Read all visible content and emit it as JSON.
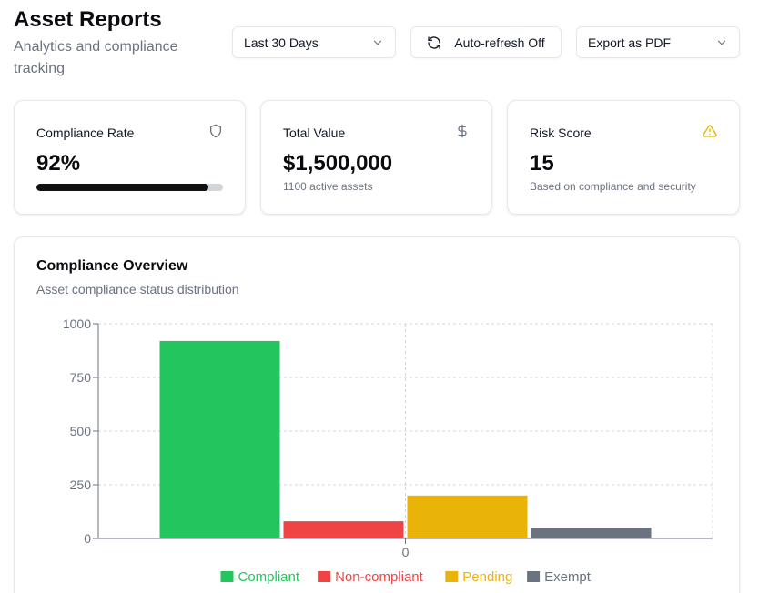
{
  "header": {
    "title": "Asset Reports",
    "subtitle": "Analytics and compliance tracking"
  },
  "toolbar": {
    "range": {
      "selected": "Last 30 Days"
    },
    "refresh_label": "Auto-refresh Off",
    "export": {
      "selected": "Export as PDF"
    }
  },
  "stats": {
    "compliance": {
      "label": "Compliance Rate",
      "value": "92%",
      "progress": 0.92,
      "icon": "shield-icon"
    },
    "total_value": {
      "label": "Total Value",
      "value": "$1,500,000",
      "sub": "1100 active assets",
      "icon": "dollar-icon"
    },
    "risk": {
      "label": "Risk Score",
      "value": "15",
      "sub": "Based on compliance and security",
      "icon": "warning-icon"
    }
  },
  "overview": {
    "title": "Compliance Overview",
    "description": "Asset compliance status distribution"
  },
  "colors": {
    "compliant": "#22c55e",
    "non_compliant": "#ef4444",
    "pending": "#eab308",
    "exempt": "#6b7280",
    "warning": "#eab308"
  },
  "chart_data": {
    "type": "bar",
    "categories": [
      "0"
    ],
    "series": [
      {
        "name": "Compliant",
        "values": [
          920
        ],
        "color": "#22c55e"
      },
      {
        "name": "Non-compliant",
        "values": [
          80
        ],
        "color": "#ef4444"
      },
      {
        "name": "Pending",
        "values": [
          200
        ],
        "color": "#eab308"
      },
      {
        "name": "Exempt",
        "values": [
          50
        ],
        "color": "#6b7280"
      }
    ],
    "ylim": [
      0,
      1000
    ],
    "yticks": [
      0,
      250,
      500,
      750,
      1000
    ],
    "grid": true,
    "legend": "bottom"
  }
}
